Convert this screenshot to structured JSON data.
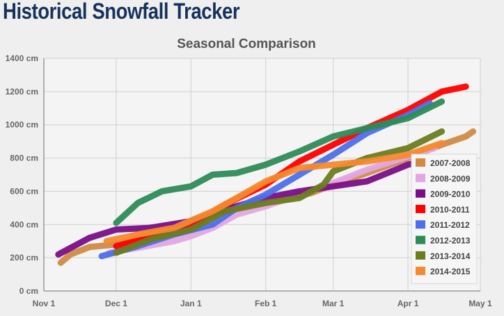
{
  "app": {
    "title": "Historical Snowfall Tracker"
  },
  "chart_data": {
    "type": "line",
    "title": "Seasonal Comparison",
    "xlabel": "",
    "ylabel": "",
    "grid": true,
    "legend_position": "right",
    "x_tick_labels": [
      "Nov 1",
      "Dec 1",
      "Jan 1",
      "Feb 1",
      "Mar 1",
      "Apr 1",
      "May 1"
    ],
    "y_tick_labels": [
      "0 cm",
      "200 cm",
      "400 cm",
      "600 cm",
      "800 cm",
      "1000 cm",
      "1200 cm",
      "1400 cm"
    ],
    "xlim": [
      "Nov 1",
      "May 1"
    ],
    "ylim": [
      0,
      1400
    ],
    "y_unit": "cm",
    "series": [
      {
        "name": "2007-2008",
        "color": "#d08a45",
        "x": [
          "Nov 8",
          "Nov 12",
          "Nov 20",
          "Dec 1",
          "Dec 15",
          "Jan 1",
          "Jan 15",
          "Feb 1",
          "Feb 20",
          "Mar 1",
          "Mar 15",
          "Apr 1",
          "Apr 15",
          "Apr 25",
          "Apr 28"
        ],
        "y": [
          170,
          220,
          265,
          280,
          340,
          410,
          470,
          530,
          590,
          640,
          710,
          800,
          880,
          930,
          960
        ]
      },
      {
        "name": "2008-2009",
        "color": "#e2a7e2",
        "x": [
          "Nov 28",
          "Dec 10",
          "Dec 25",
          "Jan 1",
          "Jan 10",
          "Jan 20",
          "Feb 1",
          "Feb 15",
          "Mar 1",
          "Mar 15",
          "Apr 1",
          "Apr 12"
        ],
        "y": [
          230,
          260,
          300,
          330,
          380,
          460,
          510,
          580,
          650,
          730,
          810,
          860
        ]
      },
      {
        "name": "2009-2010",
        "color": "#7a0e86",
        "x": [
          "Nov 7",
          "Nov 20",
          "Dec 1",
          "Dec 15",
          "Jan 1",
          "Jan 15",
          "Feb 1",
          "Feb 15",
          "Mar 1",
          "Mar 15",
          "Apr 1",
          "Apr 12"
        ],
        "y": [
          220,
          320,
          370,
          380,
          420,
          490,
          560,
          600,
          630,
          660,
          760,
          800
        ]
      },
      {
        "name": "2010-2011",
        "color": "#ff0000",
        "x": [
          "Dec 1",
          "Dec 15",
          "Jan 1",
          "Jan 15",
          "Feb 1",
          "Feb 15",
          "Mar 1",
          "Mar 15",
          "Apr 1",
          "Apr 15",
          "Apr 25"
        ],
        "y": [
          270,
          320,
          380,
          520,
          640,
          780,
          880,
          980,
          1090,
          1200,
          1230
        ]
      },
      {
        "name": "2011-2012",
        "color": "#4d6fe8",
        "x": [
          "Nov 25",
          "Dec 10",
          "Dec 25",
          "Jan 10",
          "Jan 20",
          "Feb 1",
          "Feb 15",
          "Mar 1",
          "Mar 15",
          "Apr 1",
          "Apr 10"
        ],
        "y": [
          210,
          270,
          340,
          400,
          500,
          580,
          700,
          820,
          950,
          1060,
          1130
        ]
      },
      {
        "name": "2012-2013",
        "color": "#2e8b57",
        "x": [
          "Dec 1",
          "Dec 10",
          "Dec 20",
          "Jan 1",
          "Jan 10",
          "Jan 20",
          "Feb 1",
          "Feb 15",
          "Mar 1",
          "Mar 15",
          "Apr 1",
          "Apr 15"
        ],
        "y": [
          410,
          530,
          600,
          630,
          700,
          710,
          760,
          840,
          930,
          980,
          1040,
          1140
        ]
      },
      {
        "name": "2013-2014",
        "color": "#6b7c1f",
        "x": [
          "Dec 1",
          "Dec 15",
          "Jan 1",
          "Jan 15",
          "Feb 1",
          "Feb 15",
          "Feb 25",
          "Mar 1",
          "Mar 15",
          "Apr 1",
          "Apr 15"
        ],
        "y": [
          230,
          310,
          370,
          480,
          530,
          560,
          640,
          720,
          800,
          860,
          960
        ]
      },
      {
        "name": "2014-2015",
        "color": "#f5892e",
        "x": [
          "Nov 27",
          "Dec 10",
          "Dec 25",
          "Jan 10",
          "Jan 20",
          "Feb 1",
          "Feb 15",
          "Mar 1",
          "Mar 15",
          "Apr 1",
          "Apr 15"
        ],
        "y": [
          300,
          340,
          380,
          480,
          560,
          660,
          740,
          760,
          780,
          820,
          890
        ]
      }
    ]
  }
}
